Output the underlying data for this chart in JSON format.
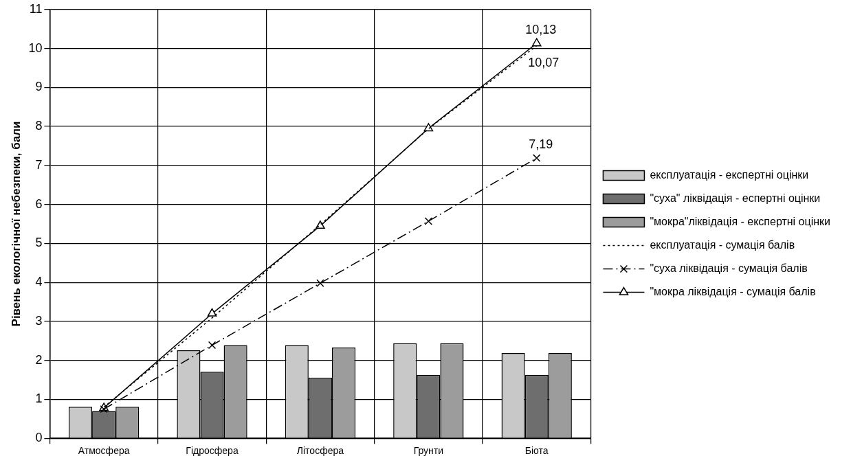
{
  "chart_data": {
    "type": "bar",
    "ylabel": "Рівень екологічної небезпеки, бали",
    "categories": [
      "Атмосфера",
      "Гідросфера",
      "Літосфера",
      "Грунти",
      "Біота"
    ],
    "series": [
      {
        "name": "експлуатація - експертні оцінки",
        "color": "#c8c8c8",
        "values": [
          0.81,
          2.26,
          2.39,
          2.44,
          2.19
        ]
      },
      {
        "name": "\"суха\" ліквідація - еспертні оцінки",
        "color": "#6e6e6e",
        "values": [
          0.7,
          1.71,
          1.56,
          1.63,
          1.63
        ]
      },
      {
        "name": "\"мокра\"ліквідація - експертні оцінки",
        "color": "#9c9c9c",
        "values": [
          0.81,
          2.39,
          2.33,
          2.44,
          2.19
        ]
      },
      {
        "name": "експлуатація - сумація балів",
        "type": "line",
        "color": "#000000",
        "line_style": "dotted",
        "values": [
          0.8,
          3.09,
          5.48,
          7.94,
          10.07
        ],
        "value_labels": [
          null,
          null,
          null,
          null,
          "10,07"
        ]
      },
      {
        "name": "\"суха ліквідація - сумація балів",
        "type": "line",
        "color": "#000000",
        "marker": "cross",
        "line_style": "dashdot",
        "values": [
          0.75,
          2.39,
          3.98,
          5.57,
          7.19
        ],
        "value_labels": [
          null,
          null,
          null,
          null,
          "7,19"
        ]
      },
      {
        "name": "\"мокра ліквідація - сумація балів",
        "type": "line",
        "color": "#000000",
        "marker": "triangle",
        "line_style": "solid",
        "values": [
          0.78,
          3.2,
          5.45,
          7.95,
          10.13
        ],
        "value_labels": [
          null,
          null,
          null,
          null,
          "10,13"
        ]
      }
    ],
    "ylim": [
      0,
      11
    ],
    "yticks": [
      0,
      1,
      2,
      3,
      4,
      5,
      6,
      7,
      8,
      9,
      10,
      11
    ],
    "grid": true,
    "legend": "right"
  }
}
